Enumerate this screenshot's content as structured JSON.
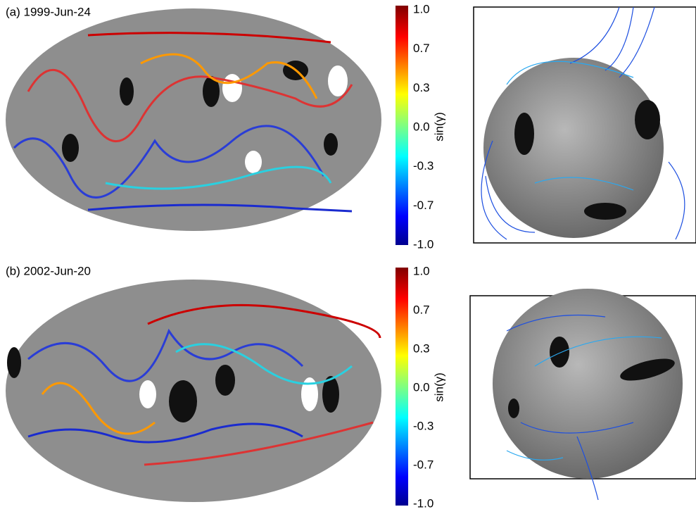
{
  "panels": [
    {
      "label": "(a) 1999-Jun-24",
      "colorbar": {
        "label": "sin(γ)",
        "ticks": [
          "1.0",
          "0.7",
          "0.3",
          "0.0",
          "-0.3",
          "-0.7",
          "-1.0"
        ]
      }
    },
    {
      "label": "(b) 2002-Jun-20",
      "colorbar": {
        "label": "sin(γ)",
        "ticks": [
          "1.0",
          "0.7",
          "0.3",
          "0.0",
          "-0.3",
          "-0.7",
          "-1.0"
        ]
      }
    }
  ]
}
